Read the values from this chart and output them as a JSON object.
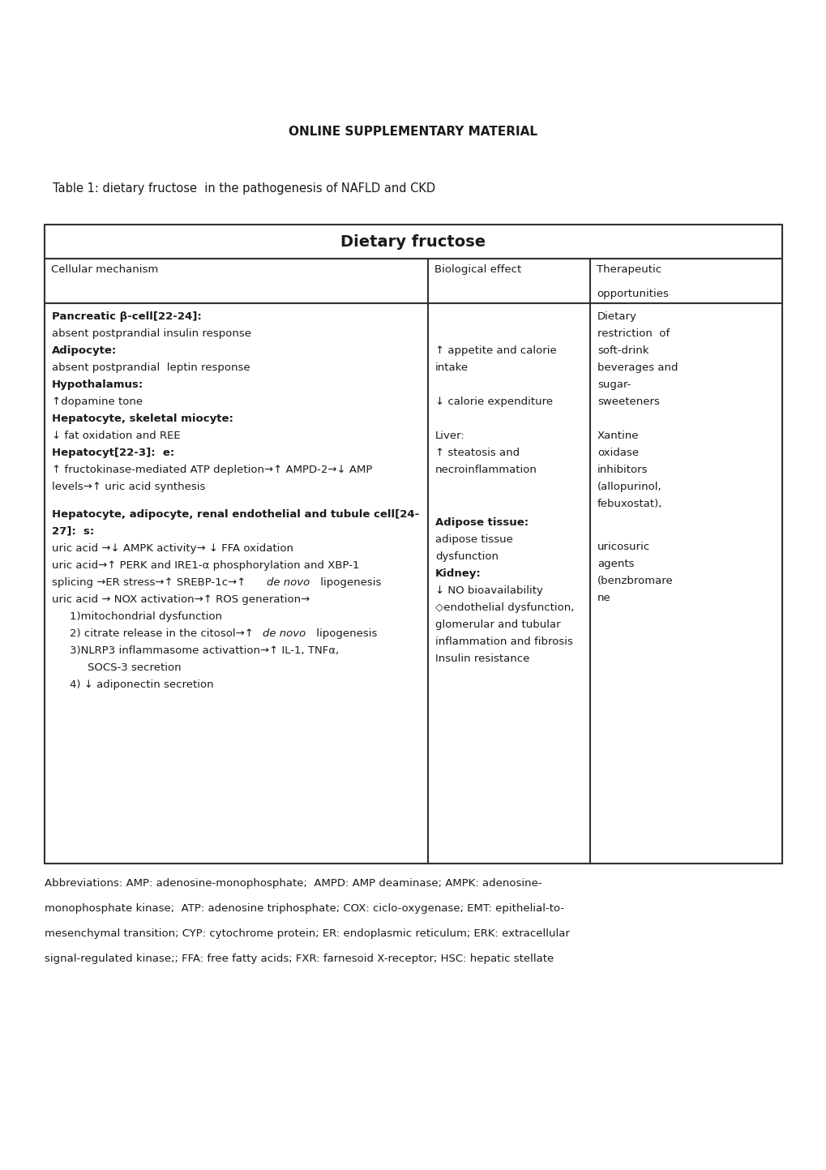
{
  "title_main": "ONLINE SUPPLEMENTARY MATERIAL",
  "table_title": "Table 1: dietary fructose  in the pathogenesis of NAFLD and CKD",
  "header_text": "Dietary fructose",
  "bg_color": "#ffffff",
  "text_color": "#1a1a1a",
  "border_color": "#333333"
}
